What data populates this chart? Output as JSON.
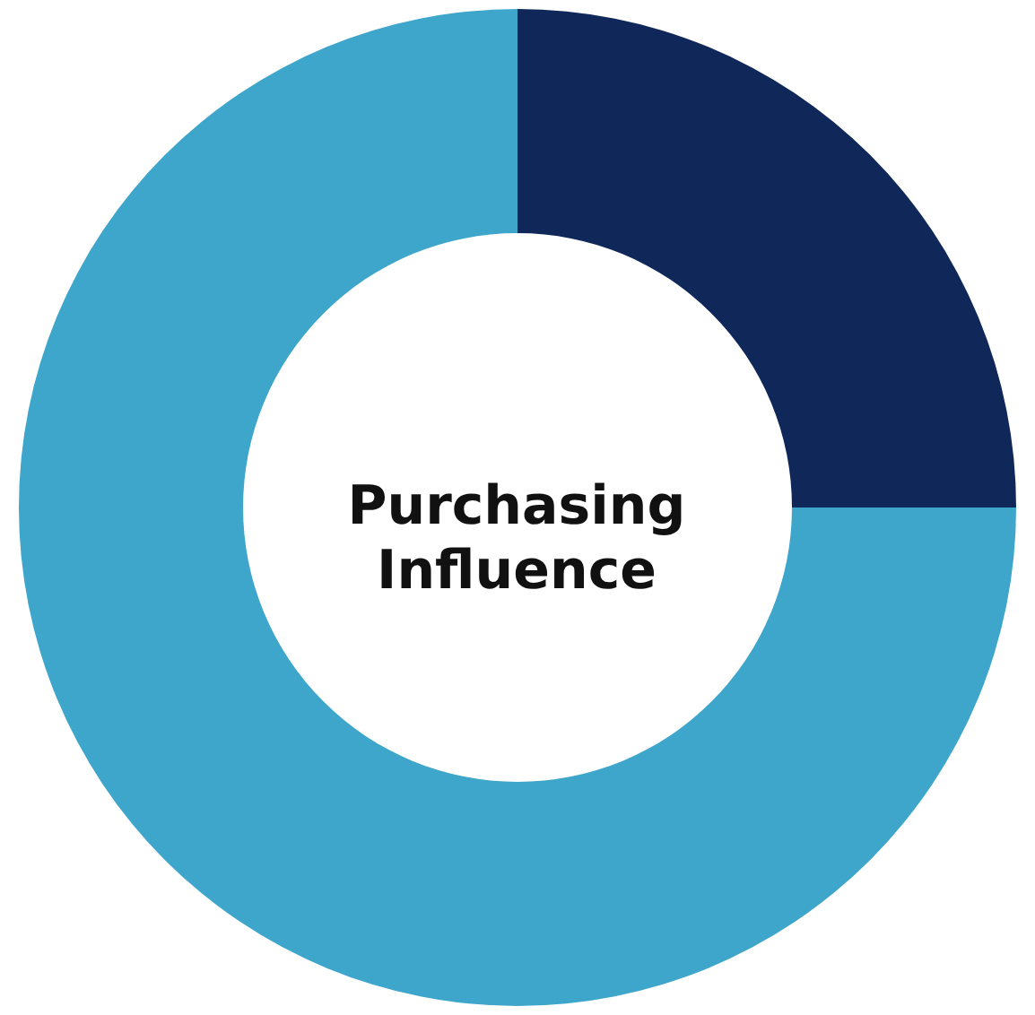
{
  "chart_data": {
    "type": "donut",
    "title": "Purchasing Influence",
    "categories": [
      null,
      null
    ],
    "values": [
      25,
      75
    ],
    "colors": [
      "#0f2759",
      "#3ea5cb"
    ]
  }
}
